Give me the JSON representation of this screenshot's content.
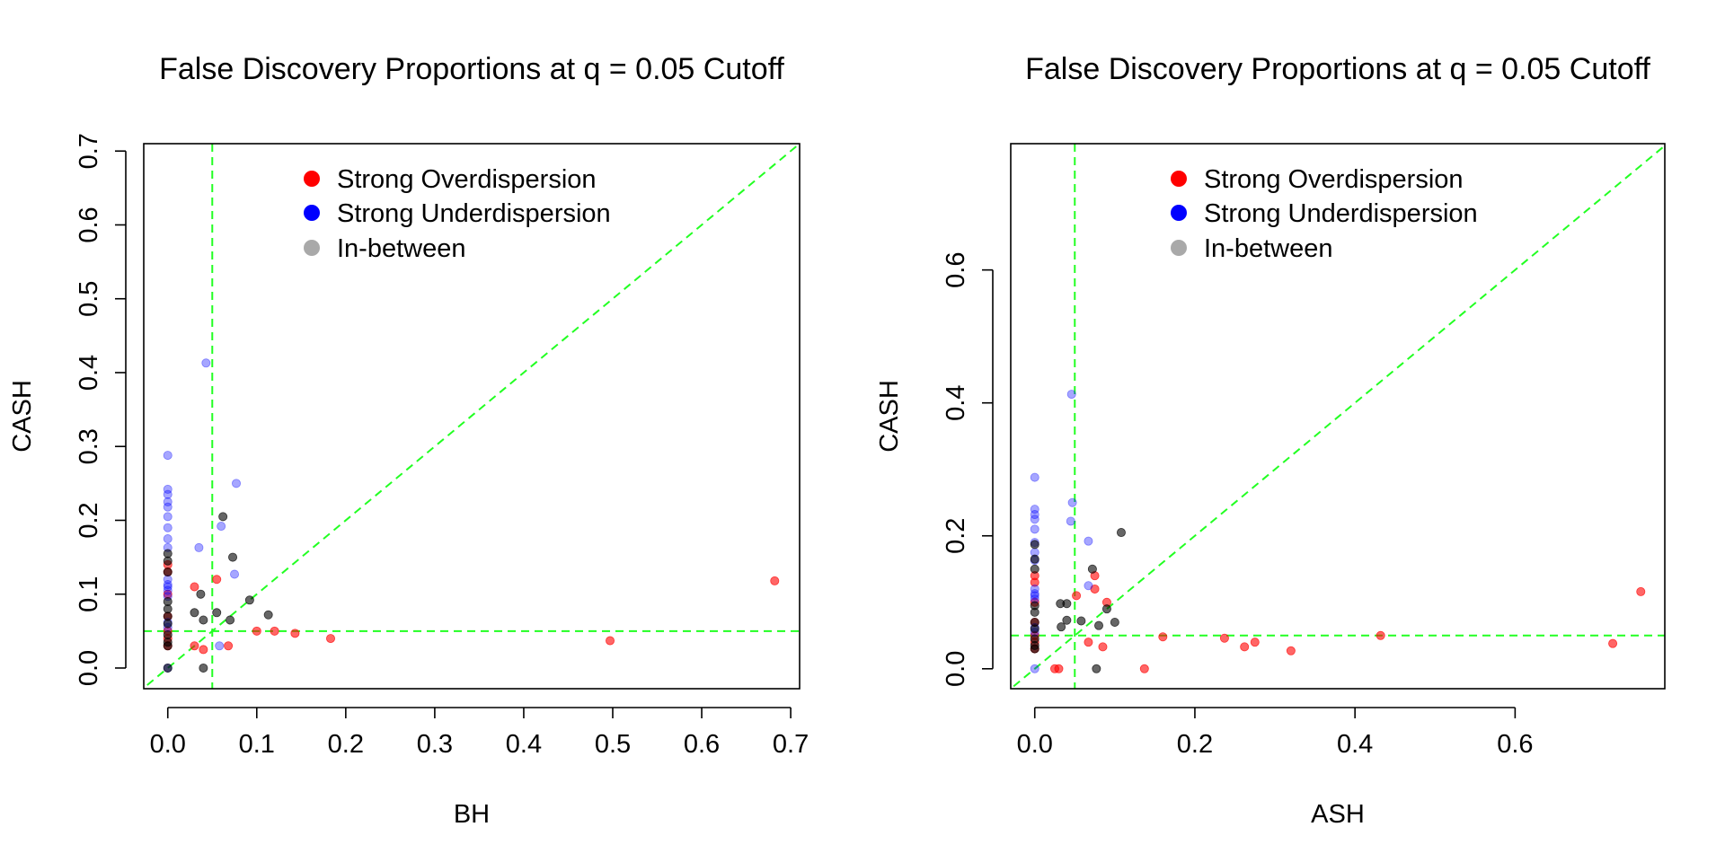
{
  "legend_labels": [
    "Strong Overdispersion",
    "Strong Underdispersion",
    "In-between"
  ],
  "colors": {
    "over": "#ff0000",
    "under": "#0000ff",
    "between": "#000000",
    "between_legend": "#a9a9a9",
    "ref": "#22ff22"
  },
  "chart_data": [
    {
      "type": "scatter",
      "title": "False Discovery Proportions at q = 0.05 Cutoff",
      "xlabel": "BH",
      "ylabel": "CASH",
      "xlim": [
        -0.027,
        0.71
      ],
      "ylim": [
        -0.028,
        0.71
      ],
      "xticks": [
        0.0,
        0.1,
        0.2,
        0.3,
        0.4,
        0.5,
        0.6,
        0.7
      ],
      "xtick_labels": [
        "0.0",
        "0.1",
        "0.2",
        "0.3",
        "0.4",
        "0.5",
        "0.6",
        "0.7"
      ],
      "yticks": [
        0.0,
        0.1,
        0.2,
        0.3,
        0.4,
        0.5,
        0.6,
        0.7
      ],
      "ytick_labels": [
        "0.0",
        "0.1",
        "0.2",
        "0.3",
        "0.4",
        "0.5",
        "0.6",
        "0.7"
      ],
      "ref_lines": {
        "vline": 0.05,
        "hline": 0.05,
        "diagonal": true
      },
      "legend_position": "top-center",
      "series": [
        {
          "key": "over",
          "points": [
            [
              0,
              0.14
            ],
            [
              0,
              0.13
            ],
            [
              0,
              0.1
            ],
            [
              0,
              0.07
            ],
            [
              0,
              0.05
            ],
            [
              0,
              0.04
            ],
            [
              0,
              0.03
            ],
            [
              0.03,
              0.11
            ],
            [
              0.055,
              0.12
            ],
            [
              0.03,
              0.03
            ],
            [
              0.04,
              0.025
            ],
            [
              0.068,
              0.03
            ],
            [
              0.1,
              0.05
            ],
            [
              0.12,
              0.05
            ],
            [
              0.143,
              0.047
            ],
            [
              0.183,
              0.04
            ],
            [
              0.497,
              0.037
            ],
            [
              0.682,
              0.118
            ]
          ]
        },
        {
          "key": "under",
          "points": [
            [
              0,
              0.288
            ],
            [
              0,
              0.242
            ],
            [
              0,
              0.235
            ],
            [
              0,
              0.225
            ],
            [
              0,
              0.218
            ],
            [
              0,
              0.205
            ],
            [
              0,
              0.19
            ],
            [
              0,
              0.175
            ],
            [
              0,
              0.163
            ],
            [
              0,
              0.12
            ],
            [
              0,
              0.113
            ],
            [
              0,
              0.11
            ],
            [
              0,
              0.105
            ],
            [
              0,
              0.097
            ],
            [
              0,
              0.062
            ],
            [
              0,
              0.055
            ],
            [
              0,
              0
            ],
            [
              0.043,
              0.413
            ],
            [
              0.077,
              0.25
            ],
            [
              0.035,
              0.163
            ],
            [
              0.06,
              0.192
            ],
            [
              0.075,
              0.127
            ],
            [
              0.058,
              0.03
            ]
          ]
        },
        {
          "key": "between",
          "points": [
            [
              0,
              0.155
            ],
            [
              0,
              0.145
            ],
            [
              0,
              0.13
            ],
            [
              0,
              0.09
            ],
            [
              0,
              0.08
            ],
            [
              0,
              0.07
            ],
            [
              0,
              0.06
            ],
            [
              0,
              0.045
            ],
            [
              0,
              0.035
            ],
            [
              0,
              0.03
            ],
            [
              0,
              0
            ],
            [
              0.03,
              0.075
            ],
            [
              0.037,
              0.1
            ],
            [
              0.04,
              0.065
            ],
            [
              0.055,
              0.075
            ],
            [
              0.062,
              0.205
            ],
            [
              0.07,
              0.065
            ],
            [
              0.073,
              0.15
            ],
            [
              0.092,
              0.092
            ],
            [
              0.113,
              0.072
            ],
            [
              0.04,
              0
            ]
          ]
        }
      ]
    },
    {
      "type": "scatter",
      "title": "False Discovery Proportions at q = 0.05 Cutoff",
      "xlabel": "ASH",
      "ylabel": "CASH",
      "xlim": [
        -0.03,
        0.787
      ],
      "ylim": [
        -0.03,
        0.79
      ],
      "xticks": [
        0.0,
        0.2,
        0.4,
        0.6
      ],
      "xtick_labels": [
        "0.0",
        "0.2",
        "0.4",
        "0.6"
      ],
      "yticks": [
        0.0,
        0.2,
        0.4,
        0.6
      ],
      "ytick_labels": [
        "0.0",
        "0.2",
        "0.4",
        "0.6"
      ],
      "ref_lines": {
        "vline": 0.05,
        "hline": 0.05,
        "diagonal": true
      },
      "legend_position": "top-center",
      "series": [
        {
          "key": "over",
          "points": [
            [
              0,
              0.14
            ],
            [
              0,
              0.13
            ],
            [
              0,
              0.1
            ],
            [
              0,
              0.07
            ],
            [
              0,
              0.05
            ],
            [
              0,
              0.04
            ],
            [
              0,
              0.03
            ],
            [
              0.025,
              0
            ],
            [
              0.03,
              0
            ],
            [
              0.052,
              0.11
            ],
            [
              0.067,
              0.04
            ],
            [
              0.075,
              0.14
            ],
            [
              0.075,
              0.12
            ],
            [
              0.085,
              0.033
            ],
            [
              0.09,
              0.1
            ],
            [
              0.137,
              0
            ],
            [
              0.16,
              0.048
            ],
            [
              0.237,
              0.046
            ],
            [
              0.262,
              0.033
            ],
            [
              0.275,
              0.04
            ],
            [
              0.32,
              0.027
            ],
            [
              0.432,
              0.05
            ],
            [
              0.722,
              0.038
            ],
            [
              0.757,
              0.116
            ]
          ]
        },
        {
          "key": "under",
          "points": [
            [
              0,
              0.288
            ],
            [
              0,
              0.24
            ],
            [
              0,
              0.232
            ],
            [
              0,
              0.225
            ],
            [
              0,
              0.21
            ],
            [
              0,
              0.19
            ],
            [
              0,
              0.175
            ],
            [
              0,
              0.163
            ],
            [
              0,
              0.12
            ],
            [
              0,
              0.113
            ],
            [
              0,
              0.11
            ],
            [
              0,
              0.105
            ],
            [
              0,
              0.062
            ],
            [
              0,
              0.055
            ],
            [
              0,
              0
            ],
            [
              0.046,
              0.413
            ],
            [
              0.047,
              0.25
            ],
            [
              0.045,
              0.222
            ],
            [
              0.067,
              0.192
            ],
            [
              0.067,
              0.125
            ]
          ]
        },
        {
          "key": "between",
          "points": [
            [
              0,
              0.187
            ],
            [
              0,
              0.165
            ],
            [
              0,
              0.15
            ],
            [
              0,
              0.095
            ],
            [
              0,
              0.085
            ],
            [
              0,
              0.07
            ],
            [
              0,
              0.06
            ],
            [
              0,
              0.045
            ],
            [
              0,
              0.035
            ],
            [
              0,
              0.03
            ],
            [
              0.033,
              0.063
            ],
            [
              0.032,
              0.098
            ],
            [
              0.04,
              0.098
            ],
            [
              0.04,
              0.073
            ],
            [
              0.058,
              0.072
            ],
            [
              0.072,
              0.15
            ],
            [
              0.08,
              0.065
            ],
            [
              0.09,
              0.09
            ],
            [
              0.1,
              0.07
            ],
            [
              0.108,
              0.205
            ],
            [
              0.077,
              0
            ]
          ]
        }
      ]
    }
  ]
}
